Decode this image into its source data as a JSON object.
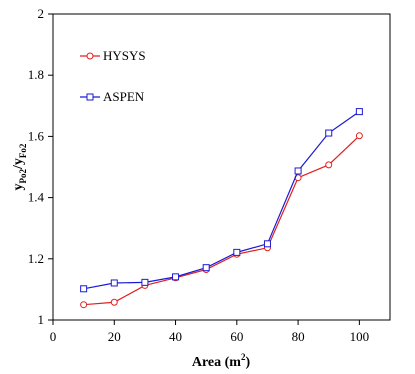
{
  "chart_data": {
    "type": "line",
    "x": [
      10,
      20,
      30,
      40,
      50,
      60,
      70,
      80,
      90,
      100
    ],
    "series": [
      {
        "name": "HYSYS",
        "color": "#e02020",
        "marker": "circle",
        "values": [
          1.05,
          1.058,
          1.113,
          1.138,
          1.165,
          1.215,
          1.236,
          1.465,
          1.507,
          1.602
        ]
      },
      {
        "name": "ASPEN",
        "color": "#1a1ad6",
        "marker": "square",
        "values": [
          1.102,
          1.121,
          1.123,
          1.141,
          1.171,
          1.221,
          1.249,
          1.487,
          1.611,
          1.681
        ]
      }
    ],
    "xlim": [
      0,
      110
    ],
    "ylim": [
      1,
      2
    ],
    "xticks": [
      0,
      20,
      40,
      60,
      80,
      100
    ],
    "yticks": [
      1,
      1.2,
      1.4,
      1.6,
      1.8,
      2
    ],
    "ytick_labels": [
      "1",
      "1.2",
      "1.4",
      "1.6",
      "1.8",
      "2"
    ],
    "xlabel": {
      "main": "Area (m",
      "sup": "2",
      "close": ")"
    },
    "ylabel": {
      "y1": "y",
      "s1": "Po2",
      "slash": "/",
      "y2": "y",
      "s2": "Fo2"
    },
    "legend_position": "top-left",
    "grid": false
  }
}
